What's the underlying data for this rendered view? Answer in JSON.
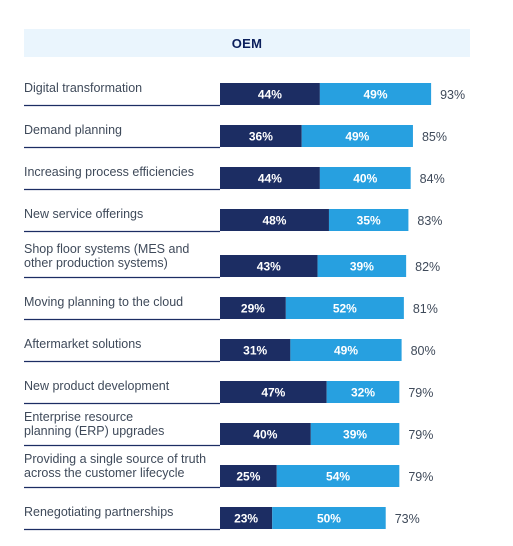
{
  "header": {
    "title": "OEM"
  },
  "chart_data": {
    "type": "bar",
    "orientation": "horizontal",
    "stacked": true,
    "categories": [
      [
        "Digital transformation"
      ],
      [
        "Demand planning"
      ],
      [
        "Increasing process efficiencies"
      ],
      [
        "New service offerings"
      ],
      [
        "Shop floor systems (MES and",
        "other production systems)"
      ],
      [
        "Moving planning to the cloud"
      ],
      [
        "Aftermarket solutions"
      ],
      [
        "New product development"
      ],
      [
        "Enterprise resource",
        "planning (ERP) upgrades"
      ],
      [
        "Providing a single source of truth",
        "across the customer lifecycle"
      ],
      [
        "Renegotiating partnerships"
      ]
    ],
    "series": [
      {
        "values": [
          44,
          36,
          44,
          48,
          43,
          29,
          31,
          47,
          40,
          25,
          23
        ],
        "color": "#1c2d63"
      },
      {
        "values": [
          49,
          49,
          40,
          35,
          39,
          52,
          49,
          32,
          39,
          54,
          50
        ],
        "color": "#27a0e0"
      }
    ],
    "totals": [
      93,
      85,
      84,
      83,
      82,
      81,
      80,
      79,
      79,
      79,
      73
    ],
    "value_format": "{v}%",
    "divider_color": "#1c2d63",
    "label_color": "#3f4a5a",
    "total_color": "#3f4a5a"
  }
}
